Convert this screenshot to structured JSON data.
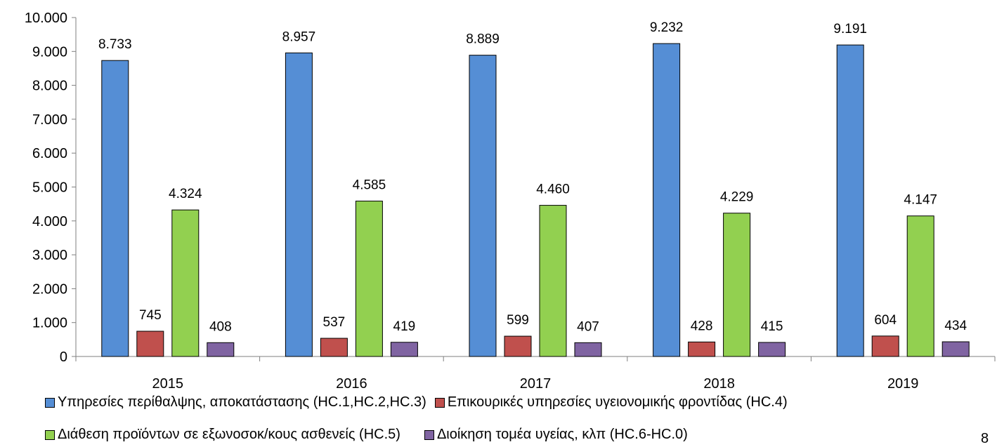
{
  "chart_data": {
    "type": "bar",
    "categories": [
      "2015",
      "2016",
      "2017",
      "2018",
      "2019"
    ],
    "series": [
      {
        "name": "Υπηρεσίες περίθαλψης, αποκατάστασης (HC.1,HC.2,HC.3)",
        "color": "#558ed5",
        "values": [
          8733,
          8957,
          8889,
          9232,
          9191
        ],
        "labels": [
          "8.733",
          "8.957",
          "8.889",
          "9.232",
          "9.191"
        ]
      },
      {
        "name": "Επικουρικές υπηρεσίες υγειονομικής φροντίδας (HC.4)",
        "color": "#c0504d",
        "values": [
          745,
          537,
          599,
          428,
          604
        ],
        "labels": [
          "745",
          "537",
          "599",
          "428",
          "604"
        ]
      },
      {
        "name": "Διάθεση προϊόντων σε εξωνοσοκ/κους ασθενείς (HC.5)",
        "color": "#92d050",
        "values": [
          4324,
          4585,
          4460,
          4229,
          4147
        ],
        "labels": [
          "4.324",
          "4.585",
          "4.460",
          "4.229",
          "4.147"
        ]
      },
      {
        "name": "Διοίκηση τομέα υγείας, κλπ (HC.6-HC.0)",
        "color": "#8064a2",
        "values": [
          408,
          419,
          407,
          415,
          434
        ],
        "labels": [
          "408",
          "419",
          "407",
          "415",
          "434"
        ]
      }
    ],
    "ylim": [
      0,
      10000
    ],
    "yticks": [
      "0",
      "1.000",
      "2.000",
      "3.000",
      "4.000",
      "5.000",
      "6.000",
      "7.000",
      "8.000",
      "9.000",
      "10.000"
    ],
    "title": "",
    "xlabel": "",
    "ylabel": "",
    "grid": false,
    "legend_position": "bottom"
  },
  "page_number": "8"
}
